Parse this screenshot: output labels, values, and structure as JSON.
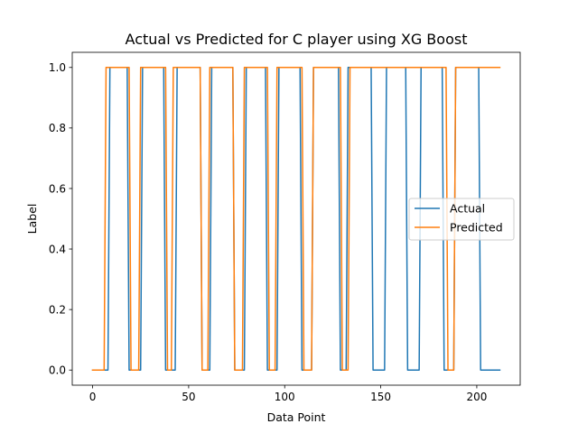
{
  "chart_data": {
    "type": "line",
    "title": "Actual vs Predicted for C player using XG Boost",
    "xlabel": "Data Point",
    "ylabel": "Label",
    "xlim": [
      -10.6,
      222.6
    ],
    "ylim": [
      -0.05,
      1.05
    ],
    "xticks": [
      0,
      50,
      100,
      150,
      200
    ],
    "yticks": [
      0.0,
      0.2,
      0.4,
      0.6,
      0.8,
      1.0
    ],
    "ytick_labels": [
      "0.0",
      "0.2",
      "0.4",
      "0.6",
      "0.8",
      "1.0"
    ],
    "grid": false,
    "legend_position": "center-right",
    "series": [
      {
        "name": "Actual",
        "color": "#1f77b4",
        "x": [
          0,
          8,
          9,
          18,
          19,
          25,
          26,
          37,
          38,
          43,
          44,
          56,
          57,
          61,
          62,
          73,
          74,
          79,
          80,
          90,
          91,
          96,
          97,
          108,
          109,
          114,
          115,
          128,
          129,
          132,
          133,
          145,
          146,
          152,
          153,
          163,
          164,
          170,
          171,
          182,
          183,
          188,
          189,
          201,
          202,
          212
        ],
        "values": [
          0,
          0,
          1,
          1,
          0,
          0,
          1,
          1,
          0,
          0,
          1,
          1,
          0,
          0,
          1,
          1,
          0,
          0,
          1,
          1,
          0,
          0,
          1,
          1,
          0,
          0,
          1,
          1,
          0,
          0,
          1,
          1,
          0,
          0,
          1,
          1,
          0,
          0,
          1,
          1,
          0,
          0,
          1,
          1,
          0,
          0
        ]
      },
      {
        "name": "Predicted",
        "color": "#ff7f0e",
        "x": [
          0,
          6,
          7,
          19,
          20,
          24,
          25,
          38,
          39,
          41,
          42,
          56,
          57,
          60,
          61,
          73,
          74,
          78,
          79,
          91,
          92,
          95,
          96,
          109,
          110,
          114,
          115,
          129,
          130,
          133,
          134,
          184,
          185,
          188,
          189,
          212
        ],
        "values": [
          0,
          0,
          1,
          1,
          0,
          0,
          1,
          1,
          0,
          0,
          1,
          1,
          0,
          0,
          1,
          1,
          0,
          0,
          1,
          1,
          0,
          0,
          1,
          1,
          0,
          0,
          1,
          1,
          0,
          0,
          1,
          1,
          0,
          0,
          1,
          1
        ]
      }
    ]
  }
}
